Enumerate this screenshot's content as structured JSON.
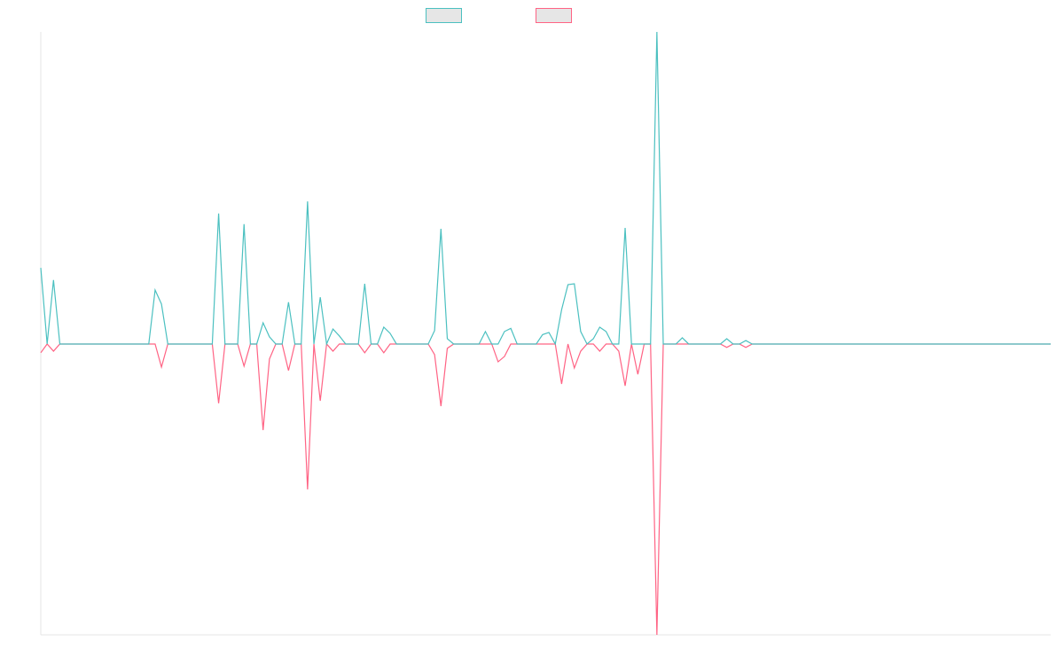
{
  "chart_data": {
    "type": "line",
    "categories": [
      null,
      null,
      null,
      null,
      null,
      null,
      null,
      null,
      null,
      null,
      null,
      null,
      null,
      null,
      null,
      null,
      null,
      null,
      null,
      null,
      null,
      null,
      null,
      null,
      null,
      null,
      null,
      null,
      null,
      null,
      null,
      null,
      null,
      null,
      null,
      null,
      null,
      null,
      null,
      null,
      null,
      null,
      null,
      null,
      null,
      null,
      null,
      null,
      null,
      null,
      null,
      null,
      null,
      null,
      null,
      null,
      null,
      null,
      null,
      null,
      null,
      null,
      null,
      null,
      null,
      null,
      null,
      null,
      null,
      null,
      null,
      null,
      null,
      null,
      null,
      null,
      null,
      null,
      null,
      null,
      null,
      null,
      null,
      null,
      null,
      null,
      null,
      null,
      null,
      null,
      null,
      null,
      null,
      null,
      null,
      null,
      null,
      null,
      null,
      null,
      null,
      null,
      null,
      null,
      null,
      null,
      null,
      null,
      null,
      null,
      null,
      null,
      null,
      null,
      null,
      null,
      null,
      null,
      null,
      null,
      null,
      null,
      null,
      null,
      null,
      null,
      null,
      null,
      null,
      null,
      null,
      null,
      null,
      null,
      null,
      null,
      null,
      null,
      null,
      null,
      null,
      null,
      null,
      null,
      null,
      null,
      null,
      null,
      null,
      null,
      null,
      null,
      null,
      null,
      null,
      null,
      null,
      null,
      null,
      null
    ],
    "series": [
      {
        "color": "#4bc0c0",
        "values": [
          24.4,
          0,
          20.5,
          0,
          0,
          0,
          0,
          0,
          0,
          0,
          0,
          0,
          0,
          0,
          0,
          0,
          0,
          0,
          17.3,
          12.8,
          0,
          0,
          0,
          0,
          0,
          0,
          0,
          0,
          41.8,
          0,
          0,
          0,
          38.4,
          0,
          0,
          6.8,
          2.3,
          0,
          0,
          13.4,
          0,
          0,
          45.7,
          0,
          15,
          0,
          4.8,
          2.6,
          0,
          0,
          0,
          19.3,
          0,
          0,
          5.4,
          3.4,
          0,
          0,
          0,
          0,
          0,
          0,
          4.3,
          36.9,
          1.7,
          0,
          0,
          0,
          0,
          0,
          4,
          0,
          0,
          4,
          5,
          0,
          0,
          0,
          0,
          3,
          3.7,
          0,
          11,
          19,
          19.3,
          4,
          0,
          1.7,
          5.4,
          4,
          0,
          0,
          37.2,
          0,
          0,
          0,
          0,
          100,
          0,
          0,
          0,
          2,
          0,
          0,
          0,
          0,
          0,
          0,
          1.7,
          0,
          0,
          1.1,
          0,
          0,
          0,
          0,
          0,
          0,
          0,
          0,
          0,
          0,
          0,
          0,
          0,
          0,
          0,
          0,
          0,
          0,
          0,
          0,
          0,
          0,
          0,
          0,
          0,
          0,
          0,
          0,
          0,
          0,
          0,
          0,
          0,
          0,
          0,
          0,
          0,
          0,
          0,
          0,
          0,
          0,
          0,
          0,
          0,
          0,
          0,
          0
        ]
      },
      {
        "color": "#ff6384",
        "values": [
          -2.8,
          0,
          -2.3,
          0,
          0,
          0,
          0,
          0,
          0,
          0,
          0,
          0,
          0,
          0,
          0,
          0,
          0,
          0,
          0,
          -7.4,
          0,
          0,
          0,
          0,
          0,
          0,
          0,
          0,
          -19,
          0,
          0,
          0,
          -7.1,
          0,
          0,
          -27.6,
          -4.8,
          0,
          0,
          -8.5,
          0,
          0,
          -46.6,
          0,
          -18.2,
          0,
          -2.3,
          0,
          0,
          0,
          0,
          -2.8,
          0,
          0,
          -2.8,
          0,
          0,
          0,
          0,
          0,
          0,
          0,
          -3.4,
          -19.9,
          -1.4,
          0,
          0,
          0,
          0,
          0,
          0,
          0,
          -5.7,
          -4,
          0,
          0,
          0,
          0,
          0,
          0,
          0,
          0,
          -12.8,
          0,
          -7.7,
          -2.3,
          0,
          0,
          -2.3,
          0,
          0,
          -2.3,
          -13.4,
          0,
          -9.7,
          0,
          0,
          -93.2,
          0,
          0,
          0,
          0,
          0,
          0,
          0,
          0,
          0,
          0,
          -1.1,
          0,
          0,
          -1.1,
          0,
          0,
          0,
          0,
          0,
          0,
          0,
          0,
          0,
          0,
          0,
          0,
          0,
          0,
          0,
          0,
          0,
          0,
          0,
          0,
          0,
          0,
          0,
          0,
          0,
          0,
          0,
          0,
          0,
          0,
          0,
          0,
          0,
          0,
          0,
          0,
          0,
          0,
          0,
          0,
          0,
          0,
          0,
          0,
          0,
          0,
          0,
          0
        ]
      }
    ],
    "ylim": [
      -93.2,
      100
    ]
  }
}
